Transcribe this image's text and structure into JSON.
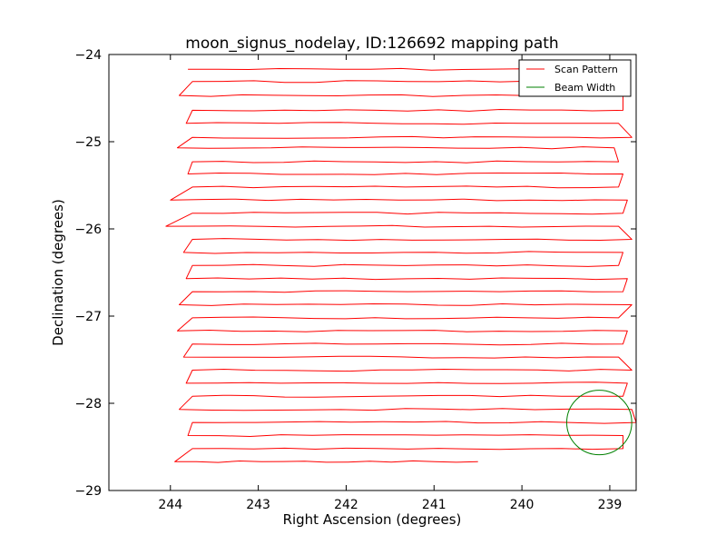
{
  "chart_data": {
    "type": "line",
    "title": "moon_signus_nodelay, ID:126692 mapping path",
    "xlabel": "Right Ascension (degrees)",
    "ylabel": "Declination (degrees)",
    "xlim": [
      244.7,
      238.7
    ],
    "ylim": [
      -29,
      -24
    ],
    "x_inverted": true,
    "xticks": [
      244,
      243,
      242,
      241,
      240,
      239
    ],
    "xtick_labels": [
      "244",
      "243",
      "242",
      "241",
      "240",
      "239"
    ],
    "yticks": [
      -24,
      -25,
      -26,
      -27,
      -28,
      -29
    ],
    "ytick_labels": [
      "−24",
      "−25",
      "−26",
      "−27",
      "−28",
      "−29"
    ],
    "grid": false,
    "legend": {
      "placement": "top-right"
    },
    "series": [
      {
        "name": "Scan Pattern",
        "color": "#ff0000",
        "scan_rows": [
          {
            "dec": -24.17,
            "ra_start": 243.8,
            "ra_end": 238.95
          },
          {
            "dec": -24.31,
            "ra_start": 243.75,
            "ra_end": 238.85
          },
          {
            "dec": -24.47,
            "ra_start": 243.9,
            "ra_end": 238.85
          },
          {
            "dec": -24.64,
            "ra_start": 243.75,
            "ra_end": 238.85
          },
          {
            "dec": -24.79,
            "ra_start": 243.82,
            "ra_end": 238.9
          },
          {
            "dec": -24.95,
            "ra_start": 243.75,
            "ra_end": 238.75
          },
          {
            "dec": -25.07,
            "ra_start": 243.92,
            "ra_end": 238.95
          },
          {
            "dec": -25.23,
            "ra_start": 243.75,
            "ra_end": 238.9
          },
          {
            "dec": -25.37,
            "ra_start": 243.8,
            "ra_end": 238.85
          },
          {
            "dec": -25.52,
            "ra_start": 243.75,
            "ra_end": 238.9
          },
          {
            "dec": -25.67,
            "ra_start": 244.0,
            "ra_end": 238.8
          },
          {
            "dec": -25.82,
            "ra_start": 243.75,
            "ra_end": 238.85
          },
          {
            "dec": -25.97,
            "ra_start": 244.05,
            "ra_end": 238.9
          },
          {
            "dec": -26.12,
            "ra_start": 243.75,
            "ra_end": 238.75
          },
          {
            "dec": -26.27,
            "ra_start": 243.85,
            "ra_end": 238.85
          },
          {
            "dec": -26.42,
            "ra_start": 243.75,
            "ra_end": 238.9
          },
          {
            "dec": -26.57,
            "ra_start": 243.82,
            "ra_end": 238.8
          },
          {
            "dec": -26.72,
            "ra_start": 243.75,
            "ra_end": 238.85
          },
          {
            "dec": -26.87,
            "ra_start": 243.9,
            "ra_end": 238.75
          },
          {
            "dec": -27.02,
            "ra_start": 243.75,
            "ra_end": 238.9
          },
          {
            "dec": -27.17,
            "ra_start": 243.92,
            "ra_end": 238.8
          },
          {
            "dec": -27.32,
            "ra_start": 243.75,
            "ra_end": 238.85
          },
          {
            "dec": -27.47,
            "ra_start": 243.85,
            "ra_end": 238.9
          },
          {
            "dec": -27.62,
            "ra_start": 243.75,
            "ra_end": 238.75
          },
          {
            "dec": -27.77,
            "ra_start": 243.82,
            "ra_end": 238.8
          },
          {
            "dec": -27.92,
            "ra_start": 243.75,
            "ra_end": 238.85
          },
          {
            "dec": -28.07,
            "ra_start": 243.9,
            "ra_end": 238.75
          },
          {
            "dec": -28.22,
            "ra_start": 243.75,
            "ra_end": 238.7
          },
          {
            "dec": -28.37,
            "ra_start": 243.8,
            "ra_end": 238.85
          },
          {
            "dec": -28.52,
            "ra_start": 243.75,
            "ra_end": 238.85
          },
          {
            "dec": -28.67,
            "ra_start": 243.95,
            "ra_end": 240.5
          }
        ]
      },
      {
        "name": "Beam Width",
        "color": "#008000",
        "center": {
          "ra": 239.12,
          "dec": -28.22
        },
        "radius_deg": 0.37
      }
    ]
  }
}
